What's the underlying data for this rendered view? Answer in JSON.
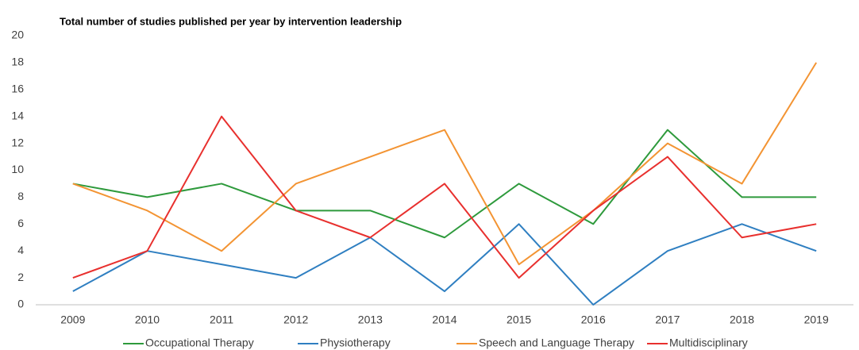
{
  "chart_data": {
    "type": "line",
    "title": "Total number of studies published per year by intervention leadership",
    "categories": [
      "2009",
      "2010",
      "2011",
      "2012",
      "2013",
      "2014",
      "2015",
      "2016",
      "2017",
      "2018",
      "2019"
    ],
    "series": [
      {
        "name": "Occupational Therapy",
        "color": "#2e9a3c",
        "values": [
          9,
          8,
          9,
          7,
          7,
          5,
          9,
          6,
          13,
          8,
          8
        ]
      },
      {
        "name": "Physiotherapy",
        "color": "#2f7fc1",
        "values": [
          1,
          4,
          3,
          2,
          5,
          1,
          6,
          0,
          4,
          6,
          4
        ]
      },
      {
        "name": "Speech and Language Therapy",
        "color": "#f39433",
        "values": [
          9,
          7,
          4,
          9,
          11,
          13,
          3,
          7,
          12,
          9,
          18
        ]
      },
      {
        "name": "Multidisciplinary",
        "color": "#e8302e",
        "values": [
          2,
          4,
          14,
          7,
          5,
          9,
          2,
          7,
          11,
          5,
          6
        ]
      }
    ],
    "ylim": [
      0,
      20
    ],
    "yticks": [
      0,
      2,
      4,
      6,
      8,
      10,
      12,
      14,
      16,
      18,
      20
    ],
    "grid": false,
    "legend": "bottom"
  }
}
